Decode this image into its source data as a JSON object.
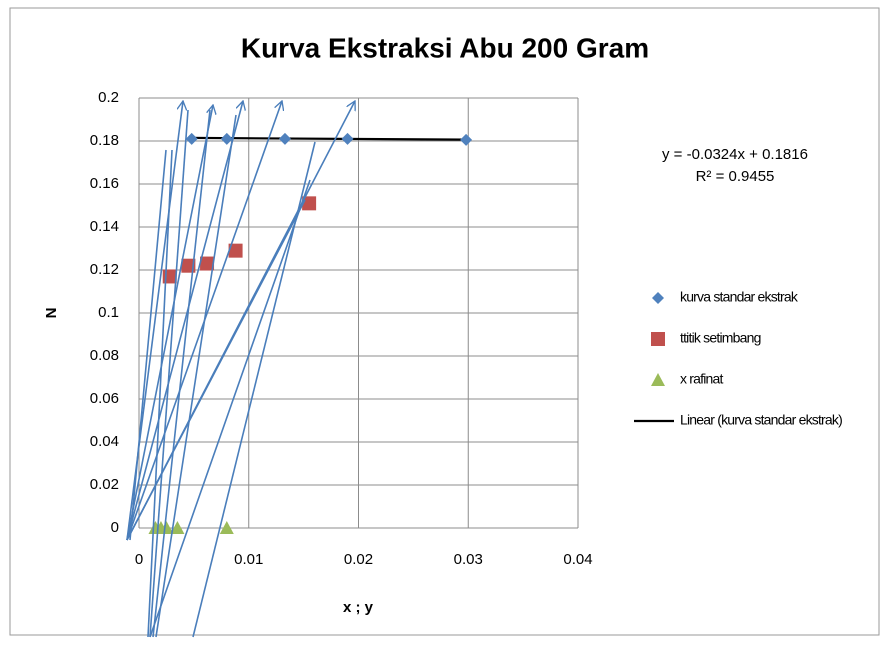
{
  "chart_data": {
    "type": "scatter",
    "title": "Kurva Ekstraksi Abu 200 Gram",
    "x_label": "x ; y",
    "y_label": "N",
    "equation": "y = -0.0324x + 0.1816",
    "r_squared_label": "R² = 0.9455",
    "xlim": [
      0,
      0.04
    ],
    "ylim": [
      0,
      0.2
    ],
    "xticks": [
      0,
      0.01,
      0.02,
      0.03,
      0.04
    ],
    "yticks": [
      0,
      0.02,
      0.04,
      0.06,
      0.08,
      0.1,
      0.12,
      0.14,
      0.16,
      0.18,
      0.2
    ],
    "grid": true,
    "legend_position": "right",
    "series": [
      {
        "name": "kurva standar ekstrak",
        "color": "#4f81bd",
        "marker": "diamond",
        "x": [
          0.0048,
          0.008,
          0.0133,
          0.019,
          0.0298
        ],
        "values": [
          0.181,
          0.181,
          0.181,
          0.181,
          0.1805
        ]
      },
      {
        "name": "ttitik setimbang",
        "color": "#c0504d",
        "marker": "square",
        "x": [
          0.0028,
          0.0045,
          0.0062,
          0.0088,
          0.0155
        ],
        "values": [
          0.117,
          0.122,
          0.123,
          0.129,
          0.151
        ]
      },
      {
        "name": "x rafinat",
        "color": "#9bbb59",
        "marker": "triangle",
        "x": [
          0.0015,
          0.002,
          0.0025,
          0.0035,
          0.008
        ],
        "values": [
          0,
          0,
          0,
          0,
          0
        ]
      }
    ],
    "trendline": {
      "name": "Linear (kurva standar ekstrak)",
      "color": "#000000",
      "slope": -0.0324,
      "intercept": 0.1816,
      "x_range": [
        0.0045,
        0.0298
      ]
    }
  }
}
